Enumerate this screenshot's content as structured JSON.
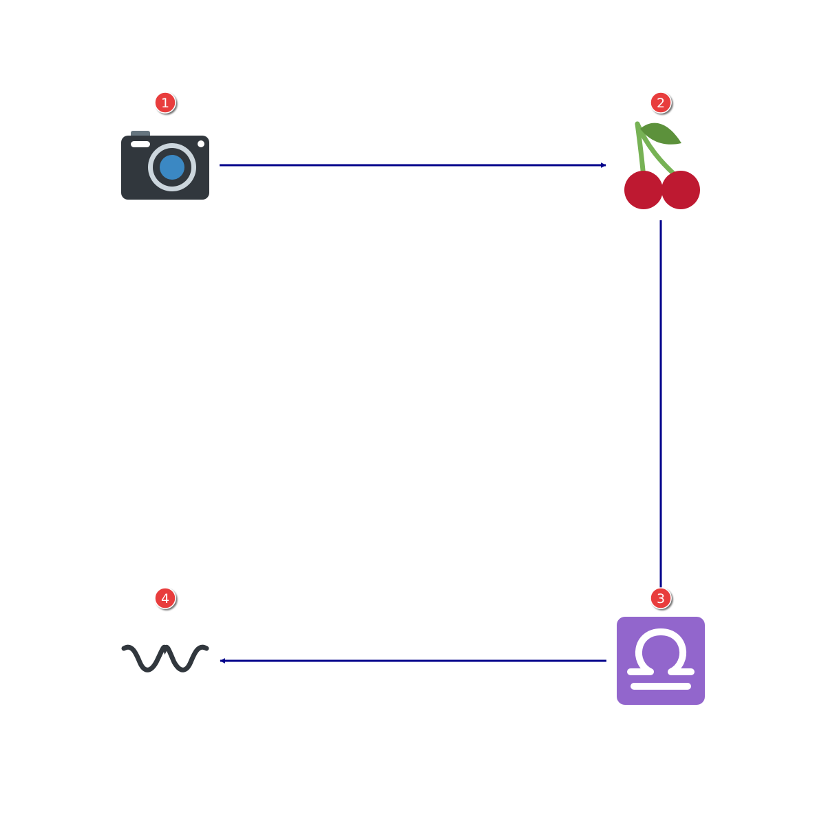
{
  "diagram": {
    "nodes": [
      {
        "id": "n1",
        "badge": "1",
        "icon": "camera-icon"
      },
      {
        "id": "n2",
        "badge": "2",
        "icon": "cherries-icon"
      },
      {
        "id": "n3",
        "badge": "3",
        "icon": "libra-icon"
      },
      {
        "id": "n4",
        "badge": "4",
        "icon": "wavy-dash-icon"
      }
    ],
    "edges": [
      {
        "from": "n1",
        "to": "n2",
        "arrow": "end"
      },
      {
        "from": "n2",
        "to": "n3",
        "arrow": "none"
      },
      {
        "from": "n3",
        "to": "n4",
        "arrow": "end"
      }
    ]
  },
  "colors": {
    "edge": "#00008b",
    "badge": "#e83c3c",
    "camera_body": "#31373d",
    "camera_lens": "#3b88c3",
    "cherry": "#be1931",
    "cherry_stem": "#77b255",
    "cherry_leaf": "#5c913b",
    "libra_bg": "#9266cc",
    "wavy": "#31373d"
  }
}
